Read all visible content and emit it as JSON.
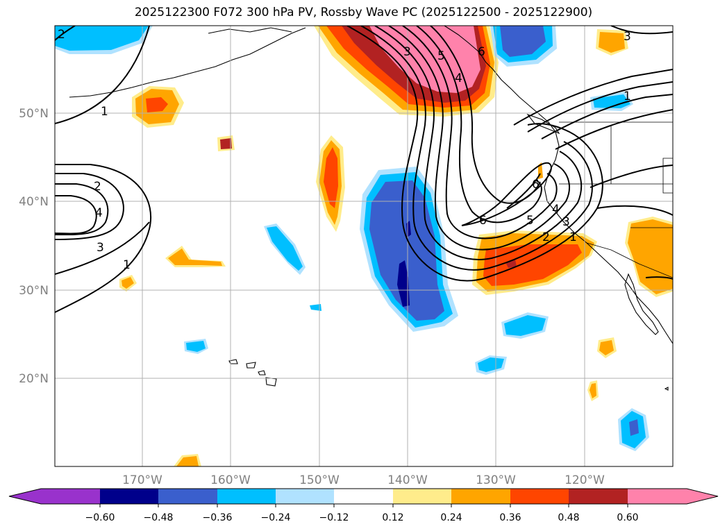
{
  "title": "2025122300 F072 300 hPa PV, Rossby Wave PC (2025122500 - 2025122900)",
  "map": {
    "lon_range": [
      -180,
      -110
    ],
    "lat_range": [
      10,
      60
    ],
    "lon_ticks": [
      "170°W",
      "160°W",
      "150°W",
      "140°W",
      "130°W",
      "120°W"
    ],
    "lat_ticks": [
      "50°N",
      "40°N",
      "30°N",
      "20°N"
    ],
    "gridlines": true,
    "contour_labels": [
      "2",
      "1",
      "2",
      "4",
      "3",
      "1",
      "3",
      "5",
      "4",
      "6",
      "1",
      "6",
      "6",
      "5",
      "4",
      "3",
      "2",
      "1",
      "3"
    ]
  },
  "colorbar": {
    "levels": [
      "−0.60",
      "−0.48",
      "−0.36",
      "−0.24",
      "−0.12",
      "0.12",
      "0.24",
      "0.36",
      "0.48",
      "0.60"
    ],
    "colors": [
      "#9932cc",
      "#00008b",
      "#3a5fcd",
      "#00bfff",
      "#b0e2ff",
      "#ffffff",
      "#ffec8b",
      "#ffa500",
      "#ff4500",
      "#b22222",
      "#ff82ab"
    ],
    "extend": "both"
  }
}
